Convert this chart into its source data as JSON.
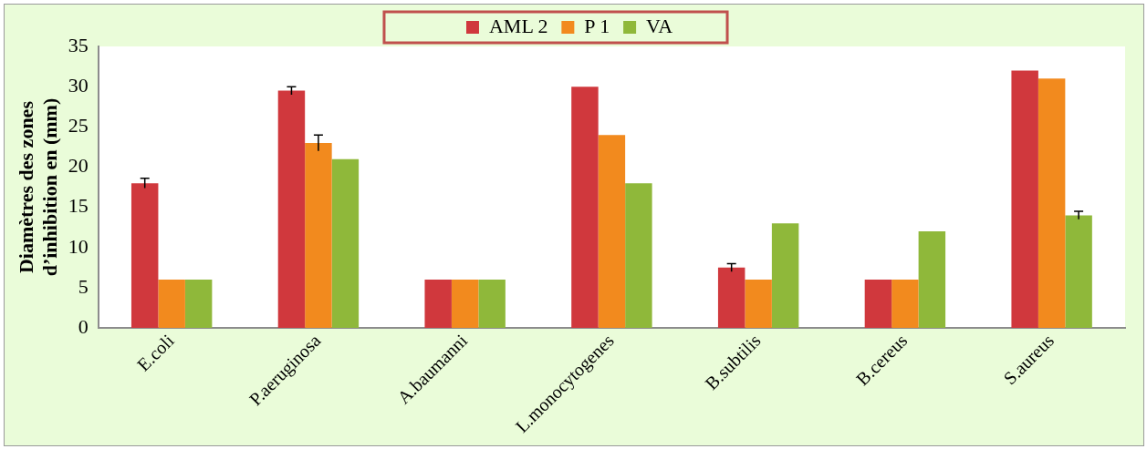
{
  "chart_data": {
    "type": "bar",
    "ylabel": "Diamètres des zones d’inhibition en (mm)",
    "categories": [
      "E.coli",
      "P.aeruginosa",
      "A.baumanni",
      "L.monocytogenes",
      "B.subtilis",
      "B.cereus",
      "S.aureus"
    ],
    "series": [
      {
        "name": "AML 2",
        "color": "#d0383d",
        "values": [
          18,
          29.5,
          6,
          30,
          7.5,
          6,
          32
        ],
        "errors": [
          0.6,
          0.5,
          null,
          null,
          0.5,
          null,
          null
        ]
      },
      {
        "name": "P 1",
        "color": "#f28a1e",
        "values": [
          6,
          23,
          6,
          24,
          6,
          6,
          31
        ],
        "errors": [
          null,
          1,
          null,
          null,
          null,
          null,
          null
        ]
      },
      {
        "name": "VA",
        "color": "#8fb83a",
        "values": [
          6,
          21,
          6,
          18,
          13,
          12,
          14
        ],
        "errors": [
          null,
          null,
          null,
          null,
          null,
          null,
          0.5
        ]
      }
    ],
    "ylim": [
      0,
      35
    ],
    "yticks": [
      0,
      5,
      10,
      15,
      20,
      25,
      30,
      35
    ],
    "grid": false,
    "legend": "top"
  }
}
